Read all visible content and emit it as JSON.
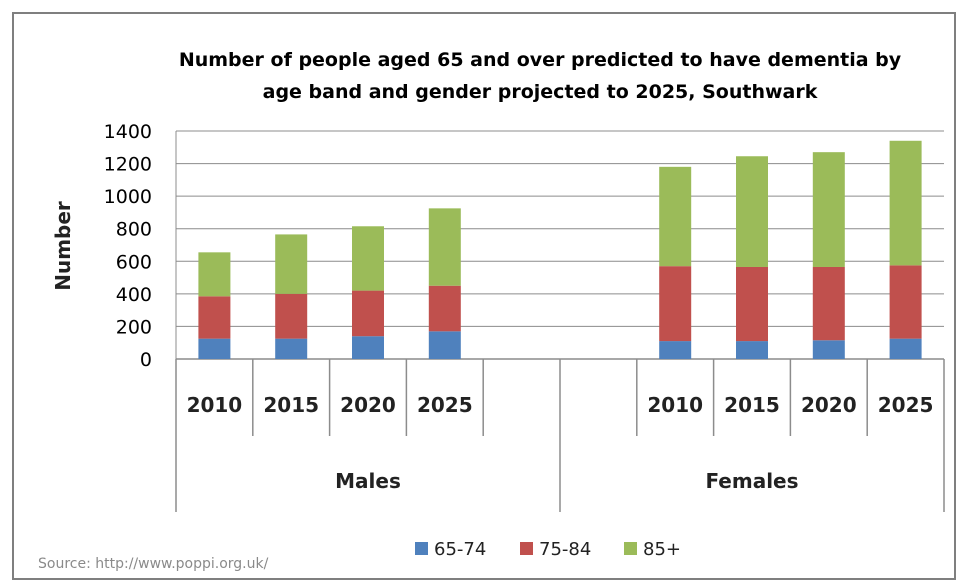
{
  "chart_data": {
    "type": "bar",
    "stacked": true,
    "title_lines": [
      "Number of people aged 65 and over predicted to have dementia by",
      "age band and gender projected to 2025, Southwark"
    ],
    "ylabel": "Number",
    "ylim": [
      0,
      1400
    ],
    "yticks": [
      0,
      200,
      400,
      600,
      800,
      1000,
      1200,
      1400
    ],
    "grid": true,
    "legend_position": "bottom",
    "groups": [
      {
        "name": "Males",
        "categories": [
          "2010",
          "2015",
          "2020",
          "2025"
        ]
      },
      {
        "name": "Females",
        "categories": [
          "2010",
          "2015",
          "2020",
          "2025"
        ]
      }
    ],
    "series": [
      {
        "name": "65-74",
        "color": "#4f81bd",
        "values": [
          125,
          125,
          140,
          170,
          110,
          110,
          115,
          125
        ]
      },
      {
        "name": "75-84",
        "color": "#c0504d",
        "values": [
          260,
          275,
          280,
          280,
          460,
          455,
          450,
          450
        ]
      },
      {
        "name": "85+",
        "color": "#9bbb59",
        "values": [
          270,
          365,
          395,
          475,
          610,
          680,
          705,
          765
        ]
      }
    ]
  },
  "source": "Source: http://www.poppi.org.uk/"
}
